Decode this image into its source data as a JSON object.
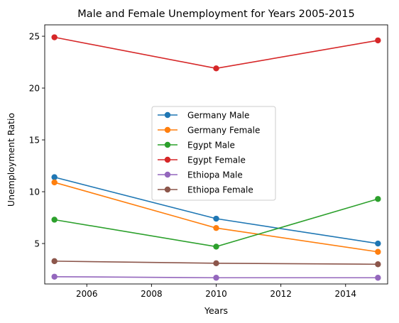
{
  "chart_data": {
    "type": "line",
    "title": "Male and Female Unemployment for Years 2005-2015",
    "xlabel": "Years",
    "ylabel": "Unemployment Ratio",
    "x": [
      2005,
      2010,
      2015
    ],
    "xlim": [
      2004.7,
      2015.3
    ],
    "ylim": [
      1.1,
      26.1
    ],
    "xticks": [
      2006,
      2008,
      2010,
      2012,
      2014
    ],
    "yticks": [
      5,
      10,
      15,
      20,
      25
    ],
    "grid": false,
    "legend_position": "center",
    "series": [
      {
        "name": "Germany Male",
        "color": "#1f77b4",
        "values": [
          11.4,
          7.4,
          5.0
        ]
      },
      {
        "name": "Germany Female",
        "color": "#ff7f0e",
        "values": [
          10.9,
          6.5,
          4.2
        ]
      },
      {
        "name": "Egypt Male",
        "color": "#2ca02c",
        "values": [
          7.3,
          4.7,
          9.3
        ]
      },
      {
        "name": "Egypt Female",
        "color": "#d62728",
        "values": [
          24.9,
          21.9,
          24.6
        ]
      },
      {
        "name": "Ethiopa Male",
        "color": "#9467bd",
        "values": [
          1.8,
          1.7,
          1.7
        ]
      },
      {
        "name": "Ethiopa Female",
        "color": "#8c564b",
        "values": [
          3.3,
          3.1,
          3.0
        ]
      }
    ]
  }
}
